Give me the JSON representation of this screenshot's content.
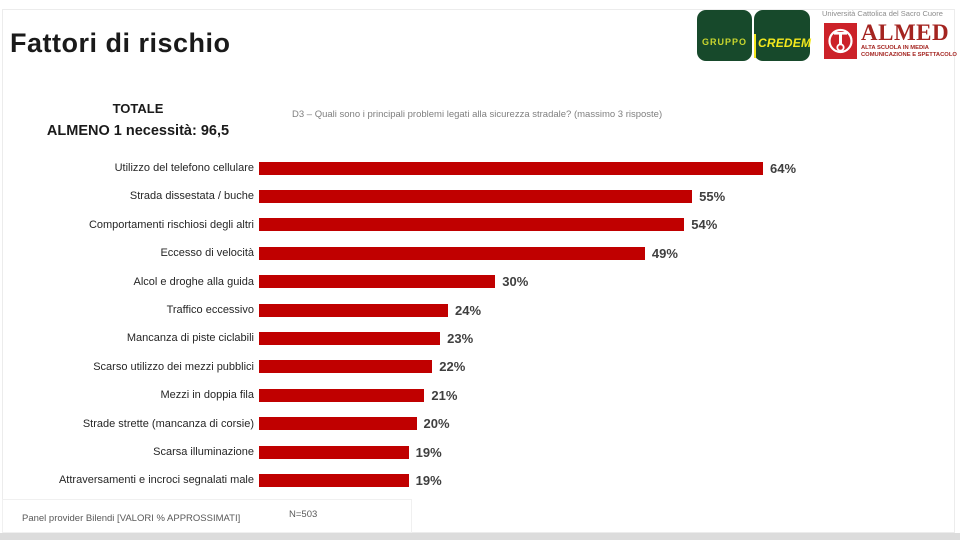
{
  "slide": {
    "title": "Fattori di rischio",
    "header": {
      "total_label": "TOTALE",
      "subtotal_label": "ALMENO 1 necessità: 96,5",
      "question": "D3 – Quali sono i principali problemi legati alla sicurezza stradale? (massimo 3 risposte)"
    },
    "logos": {
      "credem": {
        "group_label": "GRUPPO",
        "brand_label": "CREDEM",
        "bg_color": "#17492b",
        "group_text_color": "#c9d62f",
        "brand_text_color": "#f3e81d"
      },
      "almed": {
        "university": "Università Cattolica del Sacro Cuore",
        "name": "ALMED",
        "subtitle_line1": "ALTA SCUOLA IN MEDIA",
        "subtitle_line2": "COMUNICAZIONE E SPETTACOLO",
        "emblem_color": "#cc2229",
        "text_color": "#a42420"
      }
    },
    "footer": {
      "source": "Panel provider Bilendi [VALORI % APPROSSIMATI]",
      "sample": "N=503"
    }
  },
  "chart_data": {
    "type": "bar",
    "orientation": "horizontal",
    "title": "",
    "xlabel": "",
    "ylabel": "",
    "xlim": [
      0,
      70
    ],
    "grid": false,
    "legend": "none",
    "bar_color": "#c00000",
    "value_suffix": "%",
    "categories": [
      "Utilizzo del telefono cellulare",
      "Strada dissestata / buche",
      "Comportamenti rischiosi degli altri",
      "Eccesso di velocità",
      "Alcol e droghe alla guida",
      "Traffico eccessivo",
      "Mancanza di piste ciclabili",
      "Scarso utilizzo dei mezzi pubblici",
      "Mezzi in doppia fila",
      "Strade strette (mancanza di corsie)",
      "Scarsa illuminazione",
      "Attraversamenti e incroci segnalati male"
    ],
    "values": [
      64,
      55,
      54,
      49,
      30,
      24,
      23,
      22,
      21,
      20,
      19,
      19
    ]
  }
}
